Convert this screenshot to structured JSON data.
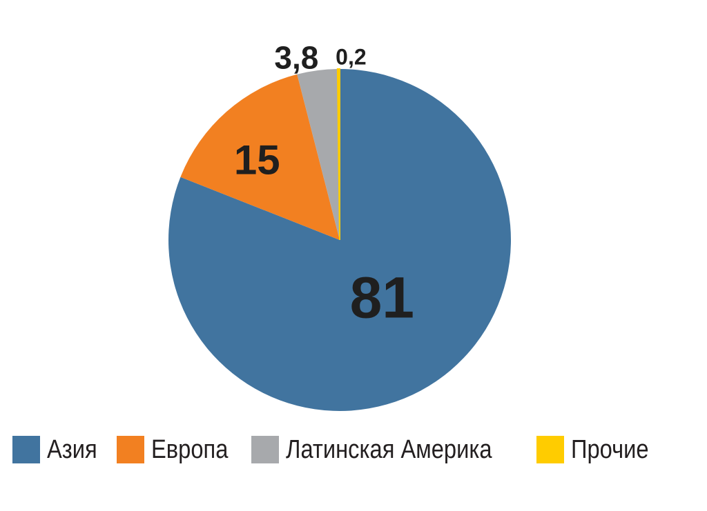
{
  "chart_data": {
    "type": "pie",
    "title": "",
    "categories": [
      "Азия",
      "Европа",
      "Латинская Америка",
      "Прочие"
    ],
    "values": [
      81,
      15,
      3.8,
      0.2
    ],
    "value_labels": [
      "81",
      "15",
      "3,8",
      "0,2"
    ],
    "colors": [
      "#41749f",
      "#f28021",
      "#a7a9ac",
      "#ffcc00"
    ],
    "start_angle": "12 o'clock",
    "direction": "clockwise",
    "legend": {
      "position": "bottom",
      "entries": [
        {
          "label": "Азия",
          "color": "#41749f"
        },
        {
          "label": "Европа",
          "color": "#f28021"
        },
        {
          "label": "Латинская Америка",
          "color": "#a7a9ac"
        },
        {
          "label": "Прочие",
          "color": "#ffcc00"
        }
      ]
    }
  }
}
